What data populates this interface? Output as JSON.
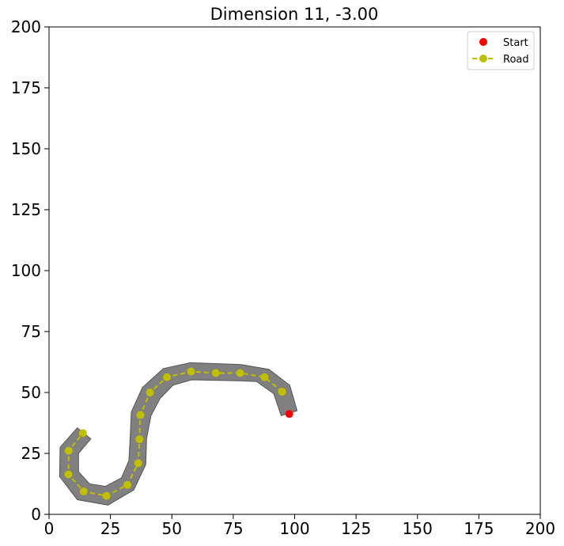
{
  "chart_data": {
    "type": "scatter",
    "title": "Dimension 11, -3.00",
    "xlabel": "",
    "ylabel": "",
    "xlim": [
      0,
      200
    ],
    "ylim": [
      0,
      200
    ],
    "xticks": [
      0,
      25,
      50,
      75,
      100,
      125,
      150,
      175,
      200
    ],
    "yticks": [
      0,
      25,
      50,
      75,
      100,
      125,
      150,
      175,
      200
    ],
    "grid": false,
    "legend_position": "top-right",
    "series": [
      {
        "name": "Start",
        "style": "marker",
        "color": "#ff0000",
        "points": [
          [
            97.8,
            41.2
          ]
        ]
      },
      {
        "name": "Road",
        "style": "dashed-line-with-markers",
        "color": "#bfbf00",
        "points": [
          [
            94.9,
            50.3
          ],
          [
            87.7,
            56.3
          ],
          [
            77.8,
            58.0
          ],
          [
            67.9,
            58.0
          ],
          [
            57.8,
            58.6
          ],
          [
            48.0,
            56.3
          ],
          [
            41.1,
            50.0
          ],
          [
            37.2,
            40.8
          ],
          [
            36.8,
            30.8
          ],
          [
            36.3,
            21.0
          ],
          [
            31.9,
            12.1
          ],
          [
            23.4,
            7.6
          ],
          [
            14.1,
            9.4
          ],
          [
            7.9,
            16.4
          ],
          [
            8.0,
            26.1
          ],
          [
            13.8,
            33.3
          ]
        ]
      }
    ],
    "road_band": {
      "color": "#808080",
      "outline": [
        [
          94.5,
          40.5
        ],
        [
          91.5,
          49.5
        ],
        [
          84.5,
          54.5
        ],
        [
          77.5,
          54.8
        ],
        [
          58.0,
          55.2
        ],
        [
          50.5,
          53.0
        ],
        [
          45.2,
          47.5
        ],
        [
          41.5,
          40.5
        ],
        [
          39.7,
          31.0
        ],
        [
          39.4,
          20.5
        ],
        [
          34.5,
          10.0
        ],
        [
          24.0,
          3.8
        ],
        [
          11.5,
          6.0
        ],
        [
          4.3,
          15.5
        ],
        [
          4.5,
          27.5
        ],
        [
          11.5,
          35.5
        ],
        [
          17.0,
          31.0
        ],
        [
          12.0,
          25.0
        ],
        [
          12.0,
          17.5
        ],
        [
          16.5,
          12.5
        ],
        [
          23.0,
          11.5
        ],
        [
          29.5,
          15.0
        ],
        [
          32.5,
          22.0
        ],
        [
          33.0,
          31.0
        ],
        [
          33.5,
          42.0
        ],
        [
          38.0,
          52.0
        ],
        [
          46.5,
          59.8
        ],
        [
          57.5,
          62.2
        ],
        [
          78.0,
          61.5
        ],
        [
          89.5,
          59.5
        ],
        [
          98.0,
          53.0
        ],
        [
          101.0,
          42.5
        ]
      ]
    }
  }
}
